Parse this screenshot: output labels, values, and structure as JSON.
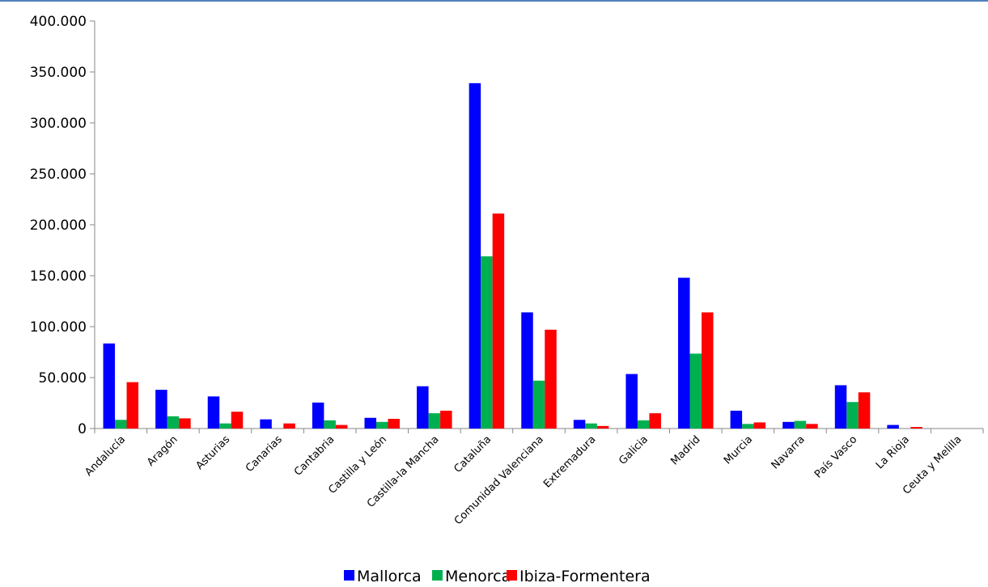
{
  "chart_data": {
    "type": "bar",
    "title": "",
    "xlabel": "",
    "ylabel": "",
    "ylim": [
      0,
      400000
    ],
    "yticks": [
      0,
      50000,
      100000,
      150000,
      200000,
      250000,
      300000,
      350000,
      400000
    ],
    "ytick_labels": [
      "0",
      "50.000",
      "100.000",
      "150.000",
      "200.000",
      "250.000",
      "300.000",
      "350.000",
      "400.000"
    ],
    "categories": [
      "Andalucía",
      "Aragón",
      "Asturias",
      "Canarias",
      "Cantabria",
      "Castilla y León",
      "Castilla-la Mancha",
      "Cataluña",
      "Comunidad Valenciana",
      "Extremadura",
      "Galicia",
      "Madrid",
      "Murcia",
      "Navarra",
      "País Vasco",
      "La Rioja",
      "Ceuta y Melilla"
    ],
    "series": [
      {
        "name": "Mallorca",
        "color": "#0000ff",
        "values": [
          83500,
          38000,
          31500,
          9000,
          25500,
          10500,
          41500,
          339000,
          114000,
          8500,
          53500,
          148000,
          17500,
          6500,
          42500,
          3500,
          0
        ]
      },
      {
        "name": "Menorca",
        "color": "#00b050",
        "values": [
          8500,
          12000,
          5000,
          0,
          8000,
          6500,
          15000,
          169000,
          47000,
          5000,
          8000,
          73500,
          4500,
          7500,
          26000,
          0,
          0
        ]
      },
      {
        "name": "Ibiza-Formentera",
        "color": "#ff0000",
        "values": [
          45500,
          10000,
          16500,
          5000,
          3500,
          9500,
          17500,
          211000,
          97000,
          2500,
          15000,
          114000,
          6000,
          4500,
          35500,
          1500,
          0
        ]
      }
    ],
    "grid": false,
    "legend": "bottom"
  }
}
